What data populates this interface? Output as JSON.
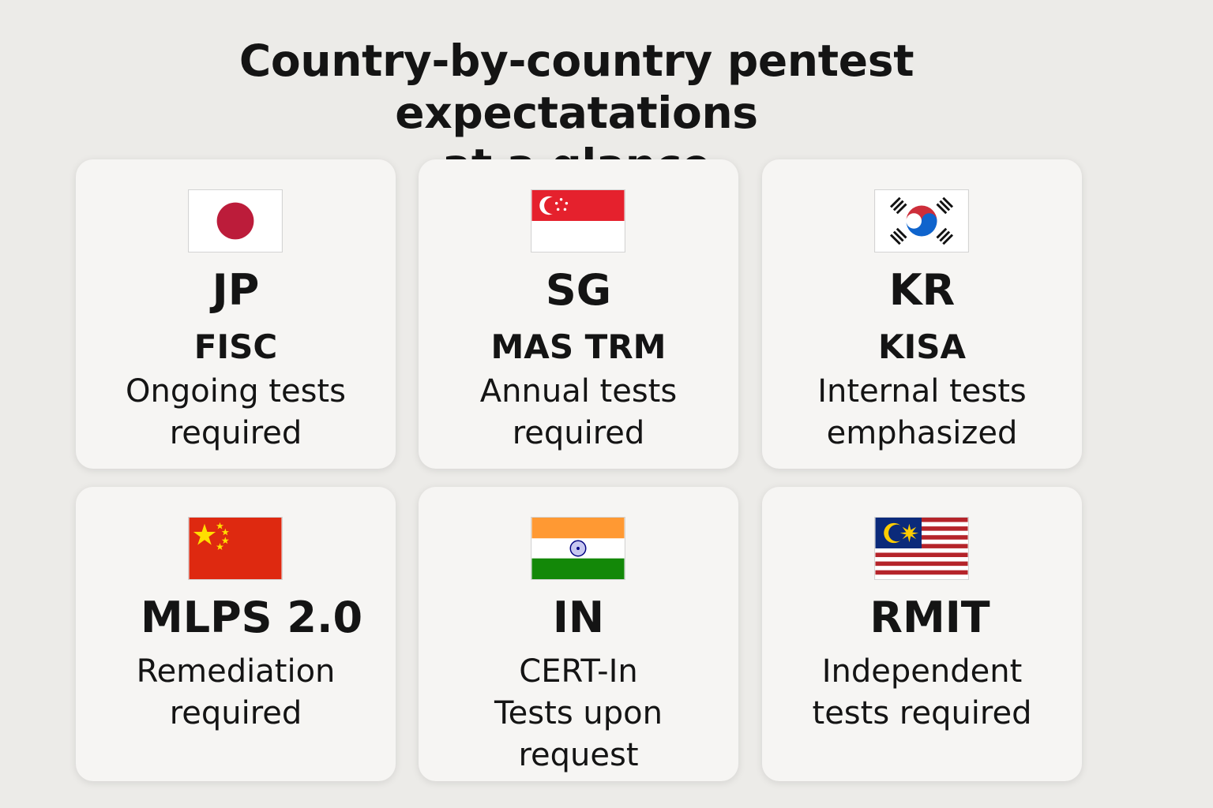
{
  "title": {
    "line1": "Country-by-country pentest expectatations",
    "line2": "at a glance"
  },
  "cards": [
    {
      "code": "JP",
      "regulator": "FISC",
      "desc_line1": "Ongoing tests",
      "desc_line2": "required",
      "flag": "japan-flag-icon"
    },
    {
      "code": "SG",
      "regulator": "MAS TRM",
      "desc_line1": "Annual tests",
      "desc_line2": "required",
      "flag": "singapore-flag-icon"
    },
    {
      "code": "KR",
      "regulator": "KISA",
      "desc_line1": "Internal tests",
      "desc_line2": "emphasized",
      "flag": "south-korea-flag-icon"
    },
    {
      "code": "MLPS 2.0",
      "desc_line1": "Remediation",
      "desc_line2": "required",
      "flag": "china-flag-icon"
    },
    {
      "code": "IN",
      "desc_line1": "CERT-In",
      "desc_line2": "Tests upon",
      "desc_line3": "request",
      "flag": "india-flag-icon"
    },
    {
      "code": "RMIT",
      "desc_line1": "Independent",
      "desc_line2": "tests required",
      "flag": "malaysia-flag-icon"
    }
  ],
  "colors": {
    "background": "#ecebe8",
    "card": "#f6f5f3",
    "text": "#141414"
  }
}
